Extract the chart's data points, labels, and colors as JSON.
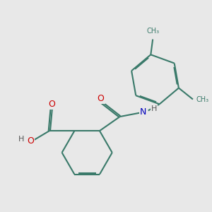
{
  "background_color": "#e8e8e8",
  "bond_color": "#3a7a6a",
  "bond_width": 1.5,
  "atom_colors": {
    "O": "#cc0000",
    "N": "#0000bb",
    "C": "#3a7a6a",
    "H": "#555555"
  },
  "font_size_heavy": 9,
  "font_size_H": 8
}
